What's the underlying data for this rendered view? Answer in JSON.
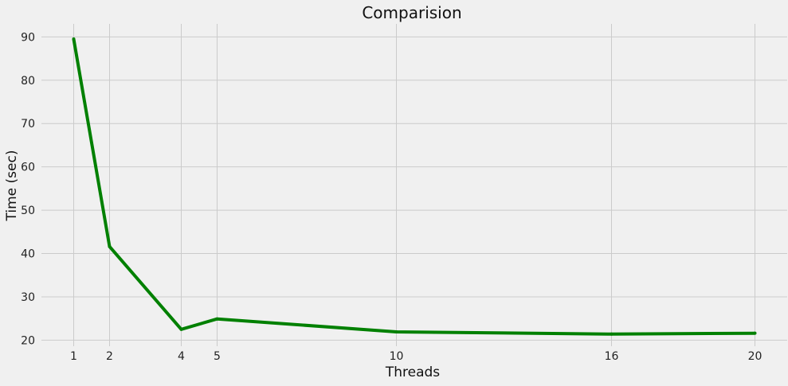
{
  "chart_data": {
    "type": "line",
    "title": "Comparision",
    "xlabel": "Threads",
    "ylabel": "Time (sec)",
    "xlim": [
      0.1,
      20.9
    ],
    "ylim": [
      18.6,
      93
    ],
    "x_ticks": [
      1,
      2,
      4,
      5,
      10,
      16,
      20
    ],
    "y_ticks": [
      20,
      30,
      40,
      50,
      60,
      70,
      80,
      90
    ],
    "grid": true,
    "series": [
      {
        "color": "#008000",
        "x": [
          1,
          2,
          4,
          5,
          10,
          16,
          20
        ],
        "y": [
          89.5,
          41.6,
          22.5,
          24.9,
          21.9,
          21.4,
          21.6
        ]
      }
    ]
  }
}
